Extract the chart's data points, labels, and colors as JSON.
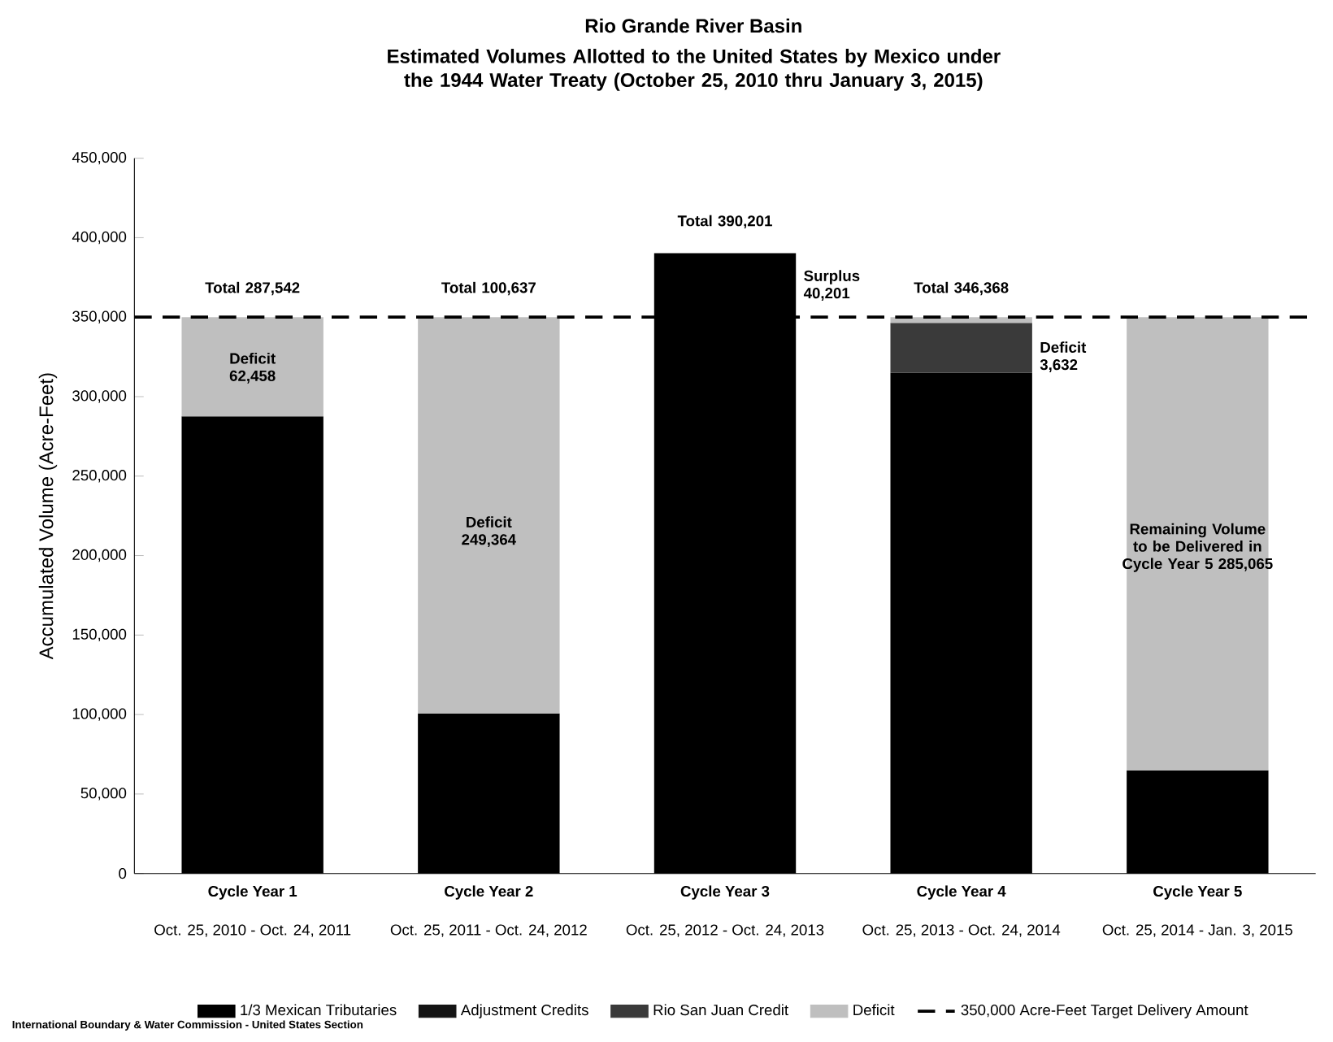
{
  "chart_data": {
    "type": "bar",
    "stacked": true,
    "title": "Rio Grande River Basin",
    "subtitle": "Estimated Volumes Allotted to the United States by Mexico under the 1944 Water Treaty (October 25, 2010 thru January 3, 2015)",
    "ylabel": "Accumulated Volume (Acre-Feet)",
    "categories": [
      "Cycle Year 1",
      "Cycle Year 2",
      "Cycle Year 3",
      "Cycle Year 4",
      "Cycle Year 5"
    ],
    "series": [
      {
        "name": "1/3 Mexican Tributaries",
        "color": "#000000",
        "values": [
          287542,
          100637,
          390201,
          315000,
          64935
        ]
      },
      {
        "name": "Adjustment Credits",
        "color": "#141414",
        "values": [
          null,
          null,
          null,
          null,
          null
        ]
      },
      {
        "name": "Rio San Juan Credit",
        "color": "#3a3a3a",
        "values": [
          null,
          null,
          null,
          31368,
          null
        ]
      },
      {
        "name": "Deficit",
        "color": "#bfbfbf",
        "values": [
          62458,
          249364,
          null,
          3632,
          285065
        ]
      }
    ],
    "ylim": [
      0,
      450000
    ],
    "yticks": [
      {
        "value": 0,
        "label": "0"
      },
      {
        "value": 50000,
        "label": "50,000"
      },
      {
        "value": 100000,
        "label": "100,000"
      },
      {
        "value": 150000,
        "label": "150,000"
      },
      {
        "value": 200000,
        "label": "200,000"
      },
      {
        "value": 250000,
        "label": "250,000"
      },
      {
        "value": 300000,
        "label": "300,000"
      },
      {
        "value": 350000,
        "label": "350,000"
      },
      {
        "value": 400000,
        "label": "400,000"
      },
      {
        "value": 450000,
        "label": "450,000"
      }
    ],
    "ref_lines": [
      {
        "axis": "y",
        "value": 350000,
        "label": "350,000 Acre-Feet Target Delivery Amount",
        "color": "#000000",
        "line_style": "dashed"
      }
    ],
    "legend": "bottom",
    "grid": false,
    "annotations": [
      "Total 287,542",
      "Deficit 62,458",
      "Total 100,637",
      "Deficit 249,364",
      "Total 390,201",
      "Surplus 40,201",
      "Total 346,368",
      "Deficit 3,632",
      "Remaining Volume to be Delivered in Cycle Year 5 285,065",
      "Oct. 25, 2010 - Oct. 24, 2011",
      "Oct. 25, 2011 - Oct. 24, 2012",
      "Oct. 25, 2012 - Oct. 24, 2013",
      "Oct. 25, 2013 - Oct. 24, 2014",
      "Oct. 25, 2014 - Jan. 3, 2015",
      "International Boundary & Water Commission - United States Section"
    ]
  }
}
